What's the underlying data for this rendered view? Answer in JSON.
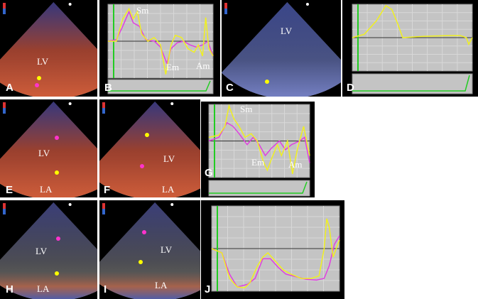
{
  "panels": [
    {
      "letter": "A",
      "labels": [
        "LV"
      ]
    },
    {
      "letter": "B",
      "labels": [
        "Sm",
        "Em",
        "Am"
      ]
    },
    {
      "letter": "C",
      "labels": [
        "LV"
      ]
    },
    {
      "letter": "D",
      "labels": []
    },
    {
      "letter": "E",
      "labels": [
        "LV",
        "LA"
      ]
    },
    {
      "letter": "F",
      "labels": [
        "LV",
        "LA"
      ]
    },
    {
      "letter": "G",
      "labels": [
        "Sm",
        "Em",
        "Am"
      ]
    },
    {
      "letter": "H",
      "labels": [
        "LV",
        "LA"
      ]
    },
    {
      "letter": "I",
      "labels": [
        "LV",
        "LA"
      ]
    },
    {
      "letter": "J",
      "labels": []
    }
  ]
}
